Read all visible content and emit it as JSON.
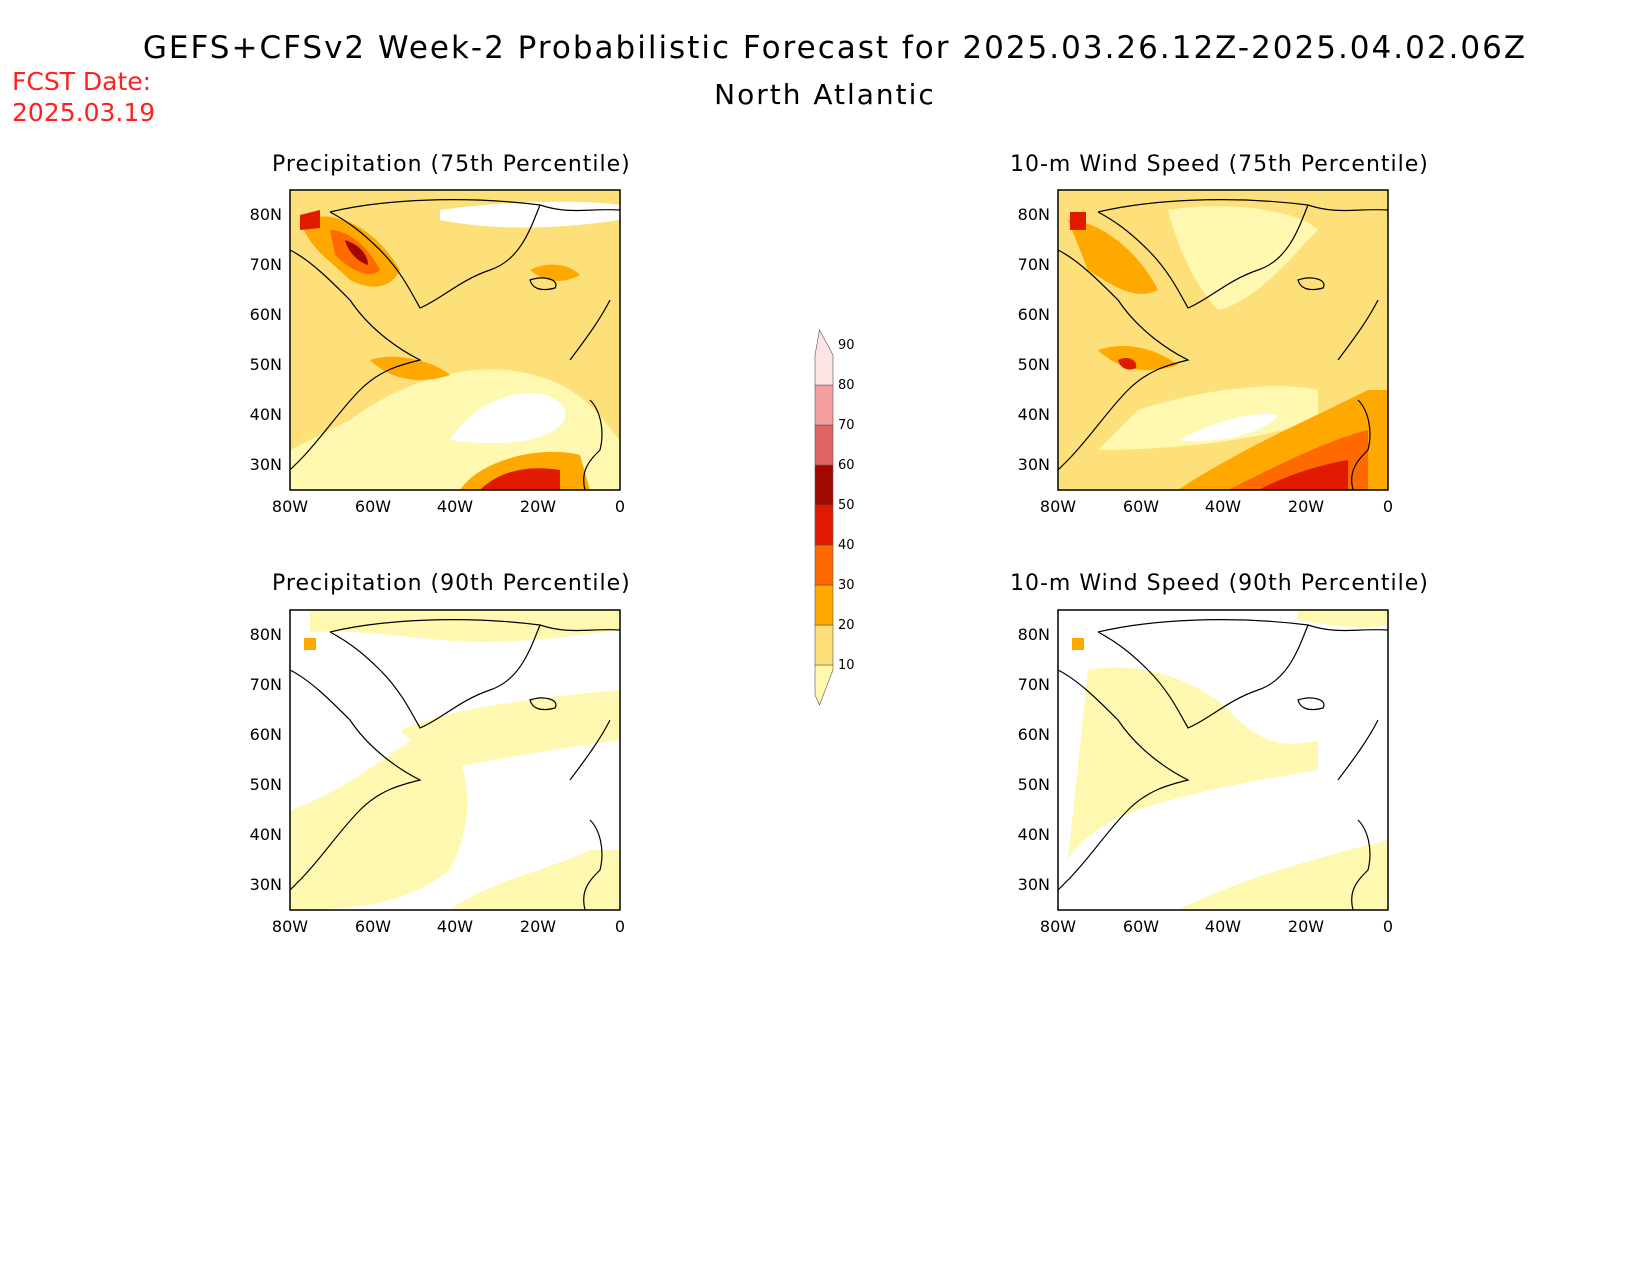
{
  "fcst_date": {
    "label": "FCST Date:",
    "value": "2025.03.19"
  },
  "title": "GEFS+CFSv2 Week-2 Probabilistic Forecast for 2025.03.26.12Z-2025.04.02.06Z",
  "region": "North Atlantic",
  "panels": [
    {
      "id": "precip75",
      "title": "Precipitation (75th Percentile)"
    },
    {
      "id": "wind75",
      "title": "10-m Wind Speed (75th Percentile)"
    },
    {
      "id": "precip90",
      "title": "Precipitation (90th Percentile)"
    },
    {
      "id": "wind90",
      "title": "10-m Wind Speed (90th Percentile)"
    }
  ],
  "axes": {
    "lat_ticks": [
      "80N",
      "70N",
      "60N",
      "50N",
      "40N",
      "30N"
    ],
    "lon_ticks": [
      "80W",
      "60W",
      "40W",
      "20W",
      "0"
    ]
  },
  "colorbar": {
    "levels": [
      "10",
      "20",
      "30",
      "40",
      "50",
      "60",
      "70",
      "80",
      "90"
    ],
    "colors": [
      "#fff8b0",
      "#fde07a",
      "#ffa800",
      "#ff6a00",
      "#e01a00",
      "#a00800",
      "#e06464",
      "#f5a0a0",
      "#fde4e4"
    ]
  }
}
